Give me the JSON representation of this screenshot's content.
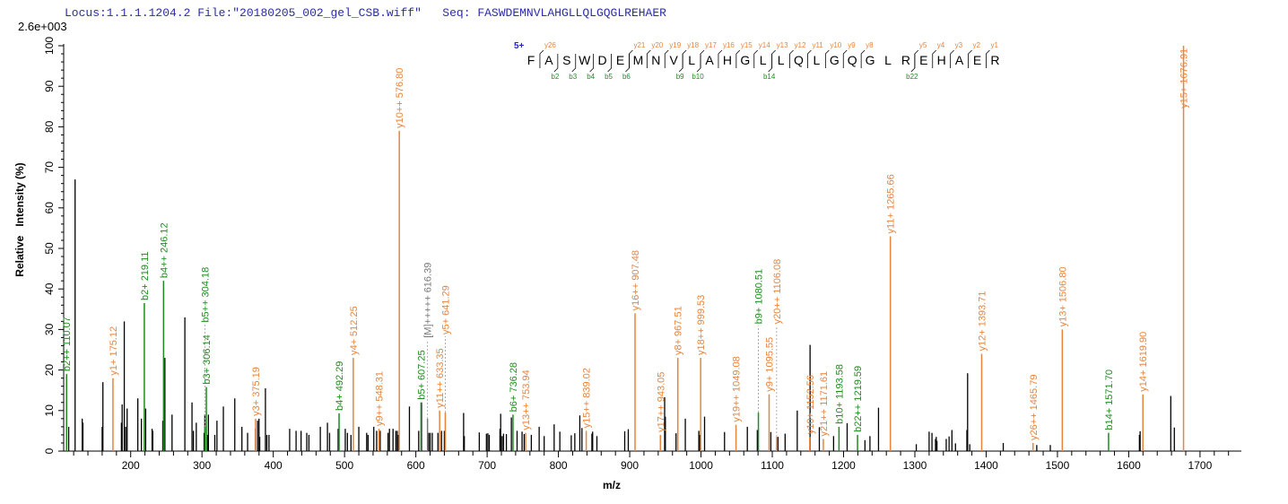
{
  "header": {
    "locus": "Locus:1.1.1.1204.2",
    "file": "File:\"20180205_002_gel_CSB.wiff\"",
    "seq_label": "Seq:",
    "seq": "FASWDEMNVLAHGLLQLGQGLREHAER"
  },
  "sequence_map": {
    "charge": "5+",
    "residues": [
      "F",
      "A",
      "S",
      "W",
      "D",
      "E",
      "M",
      "N",
      "V",
      "L",
      "A",
      "H",
      "G",
      "L",
      "L",
      "Q",
      "L",
      "G",
      "Q",
      "G",
      "L",
      "R",
      "E",
      "H",
      "A",
      "E",
      "R"
    ],
    "y_cleavages": [
      {
        "label": "y26",
        "after": 1
      },
      {
        "label": "y21",
        "after": 6
      },
      {
        "label": "y20",
        "after": 7
      },
      {
        "label": "y19",
        "after": 8
      },
      {
        "label": "y18",
        "after": 9
      },
      {
        "label": "y17",
        "after": 10
      },
      {
        "label": "y16",
        "after": 11
      },
      {
        "label": "y15",
        "after": 12
      },
      {
        "label": "y14",
        "after": 13
      },
      {
        "label": "y13",
        "after": 14
      },
      {
        "label": "y12",
        "after": 15
      },
      {
        "label": "y11",
        "after": 16
      },
      {
        "label": "y10",
        "after": 17
      },
      {
        "label": "y9",
        "after": 18
      },
      {
        "label": "y8",
        "after": 19
      },
      {
        "label": "y5",
        "after": 22
      },
      {
        "label": "y4",
        "after": 23
      },
      {
        "label": "y3",
        "after": 24
      },
      {
        "label": "y2",
        "after": 25
      },
      {
        "label": "y1",
        "after": 26
      }
    ],
    "b_cleavages": [
      {
        "label": "b2",
        "after": 2
      },
      {
        "label": "b3",
        "after": 3
      },
      {
        "label": "b4",
        "after": 4
      },
      {
        "label": "b5",
        "after": 5
      },
      {
        "label": "b6",
        "after": 6
      },
      {
        "label": "b9",
        "after": 9
      },
      {
        "label": "b10",
        "after": 10
      },
      {
        "label": "b14",
        "after": 14
      },
      {
        "label": "b22",
        "after": 22
      }
    ]
  },
  "chart_data": {
    "type": "bar",
    "subtype": "stick spectrum",
    "scale_label": "2.6e+003",
    "xlabel": "m/z",
    "ylabel": "Relative   Intensity (%)",
    "xlim": [
      106,
      1758
    ],
    "ylim": [
      0,
      100
    ],
    "xticks": [
      200,
      300,
      400,
      500,
      600,
      700,
      800,
      900,
      1000,
      1100,
      1200,
      1300,
      1400,
      1500,
      1600,
      1700
    ],
    "yticks": [
      0,
      10,
      20,
      30,
      40,
      50,
      60,
      70,
      80,
      90,
      100
    ],
    "grid": false,
    "colors": {
      "y": "#e8843c",
      "b": "#1f8c1f",
      "M": "#7a7a7a",
      "unannotated": "#000000",
      "seq_charge": "#2222cc"
    },
    "annotated_peaks": [
      {
        "mz": 110.07,
        "intensity": 19,
        "label": "b2++ 110.07",
        "ion": "b"
      },
      {
        "mz": 175.12,
        "intensity": 18,
        "label": "y1+ 175.12",
        "ion": "y"
      },
      {
        "mz": 219.11,
        "intensity": 36.5,
        "label": "b2+ 219.11",
        "ion": "b"
      },
      {
        "mz": 246.12,
        "intensity": 42,
        "label": "b4++ 246.12",
        "ion": "b"
      },
      {
        "mz": 304.18,
        "intensity": 6,
        "label": "b5++ 304.18",
        "ion": "b"
      },
      {
        "mz": 306.14,
        "intensity": 15.8,
        "label": "b3+ 306.14",
        "ion": "b"
      },
      {
        "mz": 375.19,
        "intensity": 8,
        "label": "y3+ 375.19",
        "ion": "y"
      },
      {
        "mz": 492.29,
        "intensity": 9.3,
        "label": "b4+ 492.29",
        "ion": "b"
      },
      {
        "mz": 512.25,
        "intensity": 23,
        "label": "y4+ 512.25",
        "ion": "y"
      },
      {
        "mz": 548.31,
        "intensity": 5.5,
        "label": "y9++ 548.31",
        "ion": "y"
      },
      {
        "mz": 576.8,
        "intensity": 79,
        "label": "y10++ 576.80",
        "ion": "y"
      },
      {
        "mz": 607.25,
        "intensity": 12,
        "label": "b5+ 607.25",
        "ion": "b"
      },
      {
        "mz": 616.39,
        "intensity": 8,
        "label": "[M]+++++ 616.39",
        "ion": "M"
      },
      {
        "mz": 633.35,
        "intensity": 10,
        "label": "y11++ 633.35",
        "ion": "y"
      },
      {
        "mz": 641.29,
        "intensity": 9.5,
        "label": "y5+ 641.29",
        "ion": "y"
      },
      {
        "mz": 736.28,
        "intensity": 9,
        "label": "b6+ 736.28",
        "ion": "b"
      },
      {
        "mz": 753.94,
        "intensity": 4.5,
        "label": "y13++ 753.94",
        "ion": "y"
      },
      {
        "mz": 839.02,
        "intensity": 5,
        "label": "y15++ 839.02",
        "ion": "y"
      },
      {
        "mz": 907.48,
        "intensity": 34,
        "label": "y16++ 907.48",
        "ion": "y"
      },
      {
        "mz": 943.05,
        "intensity": 4,
        "label": "y17++ 943.05",
        "ion": "y"
      },
      {
        "mz": 967.51,
        "intensity": 23,
        "label": "y8+ 967.51",
        "ion": "y"
      },
      {
        "mz": 999.53,
        "intensity": 23,
        "label": "y18++ 999.53",
        "ion": "y"
      },
      {
        "mz": 1049.08,
        "intensity": 6.5,
        "label": "y19++ 1049.08",
        "ion": "y"
      },
      {
        "mz": 1080.51,
        "intensity": 9.5,
        "label": "b9+ 1080.51",
        "ion": "b"
      },
      {
        "mz": 1095.55,
        "intensity": 14,
        "label": "y9+ 1095.55",
        "ion": "y"
      },
      {
        "mz": 1106.08,
        "intensity": 3.5,
        "label": "y20++ 1106.08",
        "ion": "y"
      },
      {
        "mz": 1152.56,
        "intensity": 3.5,
        "label": "y10+ 1152.56",
        "ion": "y"
      },
      {
        "mz": 1171.61,
        "intensity": 3,
        "label": "y21++ 1171.61",
        "ion": "y"
      },
      {
        "mz": 1193.58,
        "intensity": 6,
        "label": "b10+ 1193.58",
        "ion": "b"
      },
      {
        "mz": 1219.59,
        "intensity": 4,
        "label": "b22++ 1219.59",
        "ion": "b"
      },
      {
        "mz": 1265.66,
        "intensity": 53,
        "label": "y11+ 1265.66",
        "ion": "y"
      },
      {
        "mz": 1393.71,
        "intensity": 24,
        "label": "y12+ 1393.71",
        "ion": "y"
      },
      {
        "mz": 1465.79,
        "intensity": 2,
        "label": "y26++ 1465.79",
        "ion": "y"
      },
      {
        "mz": 1506.8,
        "intensity": 30,
        "label": "y13+ 1506.80",
        "ion": "y"
      },
      {
        "mz": 1571.7,
        "intensity": 4.5,
        "label": "b14+ 1571.70",
        "ion": "b"
      },
      {
        "mz": 1619.9,
        "intensity": 14,
        "label": "y14+ 1619.90",
        "ion": "y"
      },
      {
        "mz": 1676.91,
        "intensity": 100,
        "label": "y15+ 1676.91",
        "ion": "y"
      }
    ],
    "peaks": [
      [
        113,
        6
      ],
      [
        122,
        67
      ],
      [
        132,
        8
      ],
      [
        133,
        7
      ],
      [
        160,
        6
      ],
      [
        161,
        17
      ],
      [
        187,
        7
      ],
      [
        188,
        11.5
      ],
      [
        191,
        32
      ],
      [
        193,
        6
      ],
      [
        195,
        10.5
      ],
      [
        210,
        13
      ],
      [
        215,
        8
      ],
      [
        221,
        10.5
      ],
      [
        230,
        5.5
      ],
      [
        231,
        5
      ],
      [
        245,
        7.5
      ],
      [
        248,
        23
      ],
      [
        258,
        9
      ],
      [
        276,
        33
      ],
      [
        286,
        12
      ],
      [
        288,
        5
      ],
      [
        292,
        7
      ],
      [
        303,
        4.5
      ],
      [
        304,
        9
      ],
      [
        308,
        4
      ],
      [
        309,
        9
      ],
      [
        318,
        4
      ],
      [
        321,
        7.5
      ],
      [
        330,
        11
      ],
      [
        346,
        13
      ],
      [
        356,
        6
      ],
      [
        364,
        4.5
      ],
      [
        375,
        5.5
      ],
      [
        378,
        7.5
      ],
      [
        380,
        8
      ],
      [
        381,
        3.5
      ],
      [
        389,
        15.5
      ],
      [
        391,
        4
      ],
      [
        394,
        4
      ],
      [
        423,
        5.5
      ],
      [
        432,
        5
      ],
      [
        439,
        5
      ],
      [
        447,
        4.5
      ],
      [
        450,
        4
      ],
      [
        466,
        6
      ],
      [
        476,
        7
      ],
      [
        479,
        4.5
      ],
      [
        491,
        5.5
      ],
      [
        501,
        5.5
      ],
      [
        504,
        4.5
      ],
      [
        509,
        4
      ],
      [
        520,
        6
      ],
      [
        531,
        4.5
      ],
      [
        533,
        4
      ],
      [
        541,
        6
      ],
      [
        545,
        5
      ],
      [
        550,
        5
      ],
      [
        561,
        4.5
      ],
      [
        563,
        5.5
      ],
      [
        568,
        5.5
      ],
      [
        572,
        5
      ],
      [
        574,
        5
      ],
      [
        575,
        4
      ],
      [
        591,
        11
      ],
      [
        604,
        5
      ],
      [
        608,
        12
      ],
      [
        618,
        4.5
      ],
      [
        620,
        4.5
      ],
      [
        623,
        4.5
      ],
      [
        631,
        4.5
      ],
      [
        636,
        5
      ],
      [
        640,
        5
      ],
      [
        667,
        9.4
      ],
      [
        668,
        3.7
      ],
      [
        689,
        4.6
      ],
      [
        699,
        4.3
      ],
      [
        701,
        4.4
      ],
      [
        703,
        4
      ],
      [
        718,
        5.5
      ],
      [
        719,
        9.2
      ],
      [
        721,
        3.7
      ],
      [
        723,
        4.3
      ],
      [
        727,
        4.2
      ],
      [
        734,
        8.3
      ],
      [
        742,
        5
      ],
      [
        749,
        4.8
      ],
      [
        752,
        4.2
      ],
      [
        762,
        4
      ],
      [
        773,
        6
      ],
      [
        780,
        3.7
      ],
      [
        794,
        6.6
      ],
      [
        802,
        4.8
      ],
      [
        818,
        3.9
      ],
      [
        823,
        4.4
      ],
      [
        830,
        8.8
      ],
      [
        833,
        5.7
      ],
      [
        847,
        4.3
      ],
      [
        848,
        4.8
      ],
      [
        854,
        3.7
      ],
      [
        893,
        4.9
      ],
      [
        898,
        5.4
      ],
      [
        949,
        13.3
      ],
      [
        950,
        8.5
      ],
      [
        965,
        4.4
      ],
      [
        978,
        8
      ],
      [
        997,
        5
      ],
      [
        998,
        4
      ],
      [
        1005,
        8.5
      ],
      [
        1033,
        4.7
      ],
      [
        1065,
        6
      ],
      [
        1079,
        5.2
      ],
      [
        1080,
        4.5
      ],
      [
        1098,
        4.7
      ],
      [
        1108,
        3.5
      ],
      [
        1118,
        4.3
      ],
      [
        1135,
        10
      ],
      [
        1153,
        26.2
      ],
      [
        1166,
        5.9
      ],
      [
        1186,
        3.7
      ],
      [
        1205,
        6.9
      ],
      [
        1230,
        2.7
      ],
      [
        1237,
        3.7
      ],
      [
        1249,
        10.7
      ],
      [
        1302,
        1.7
      ],
      [
        1320,
        4.8
      ],
      [
        1324,
        4.5
      ],
      [
        1329,
        3
      ],
      [
        1330,
        3.5
      ],
      [
        1331,
        2.5
      ],
      [
        1344,
        3
      ],
      [
        1348,
        3.6
      ],
      [
        1352,
        5.2
      ],
      [
        1357,
        1.9
      ],
      [
        1373,
        5.2
      ],
      [
        1374,
        19.2
      ],
      [
        1377,
        1.7
      ],
      [
        1424,
        2
      ],
      [
        1471,
        1.5
      ],
      [
        1490,
        1.5
      ],
      [
        1615,
        4
      ],
      [
        1616,
        4.9
      ],
      [
        1659,
        13.6
      ],
      [
        1664,
        5.8
      ]
    ]
  }
}
